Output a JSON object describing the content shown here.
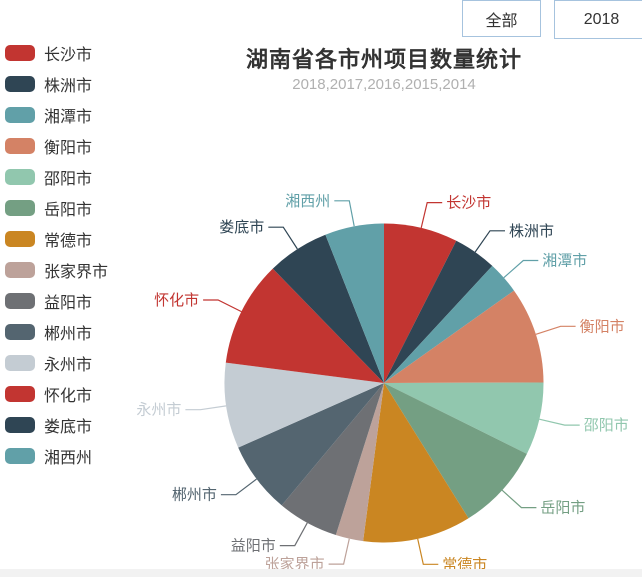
{
  "toolbar": {
    "all_button_label": "全部",
    "year_button_label": "2018",
    "border_color": "#a6c3de"
  },
  "header": {
    "title": "湖南省各市州项目数量统计",
    "subtitle": "2018,2017,2016,2015,2014",
    "title_color": "#333333",
    "subtitle_color": "#b0b0b0"
  },
  "chart_data": {
    "type": "pie",
    "title": "湖南省各市州项目数量统计",
    "subtitle": "2018,2017,2016,2015,2014",
    "legend_position": "left",
    "start_angle": "12-o'clock, clockwise",
    "value_note": "no numeric labels shown on chart; values are percentages estimated from slice angles",
    "series": [
      {
        "name": "长沙市",
        "value": 7.5,
        "color": "#c23531"
      },
      {
        "name": "株洲市",
        "value": 4.4,
        "color": "#2f4554"
      },
      {
        "name": "湘潭市",
        "value": 3.3,
        "color": "#61a0a8"
      },
      {
        "name": "衡阳市",
        "value": 9.8,
        "color": "#d48265"
      },
      {
        "name": "邵阳市",
        "value": 7.4,
        "color": "#91c7ae"
      },
      {
        "name": "岳阳市",
        "value": 8.8,
        "color": "#749f83"
      },
      {
        "name": "常德市",
        "value": 11.0,
        "color": "#ca8622"
      },
      {
        "name": "张家界市",
        "value": 2.8,
        "color": "#bda29a"
      },
      {
        "name": "益阳市",
        "value": 6.2,
        "color": "#6e7074"
      },
      {
        "name": "郴州市",
        "value": 7.3,
        "color": "#546570"
      },
      {
        "name": "永州市",
        "value": 8.7,
        "color": "#c4ccd3"
      },
      {
        "name": "怀化市",
        "value": 10.7,
        "color": "#c23531"
      },
      {
        "name": "娄底市",
        "value": 6.3,
        "color": "#2f4554"
      },
      {
        "name": "湘西州",
        "value": 6.0,
        "color": "#61a0a8"
      }
    ]
  },
  "footer": {
    "bar_color": "#f2f2f2"
  }
}
